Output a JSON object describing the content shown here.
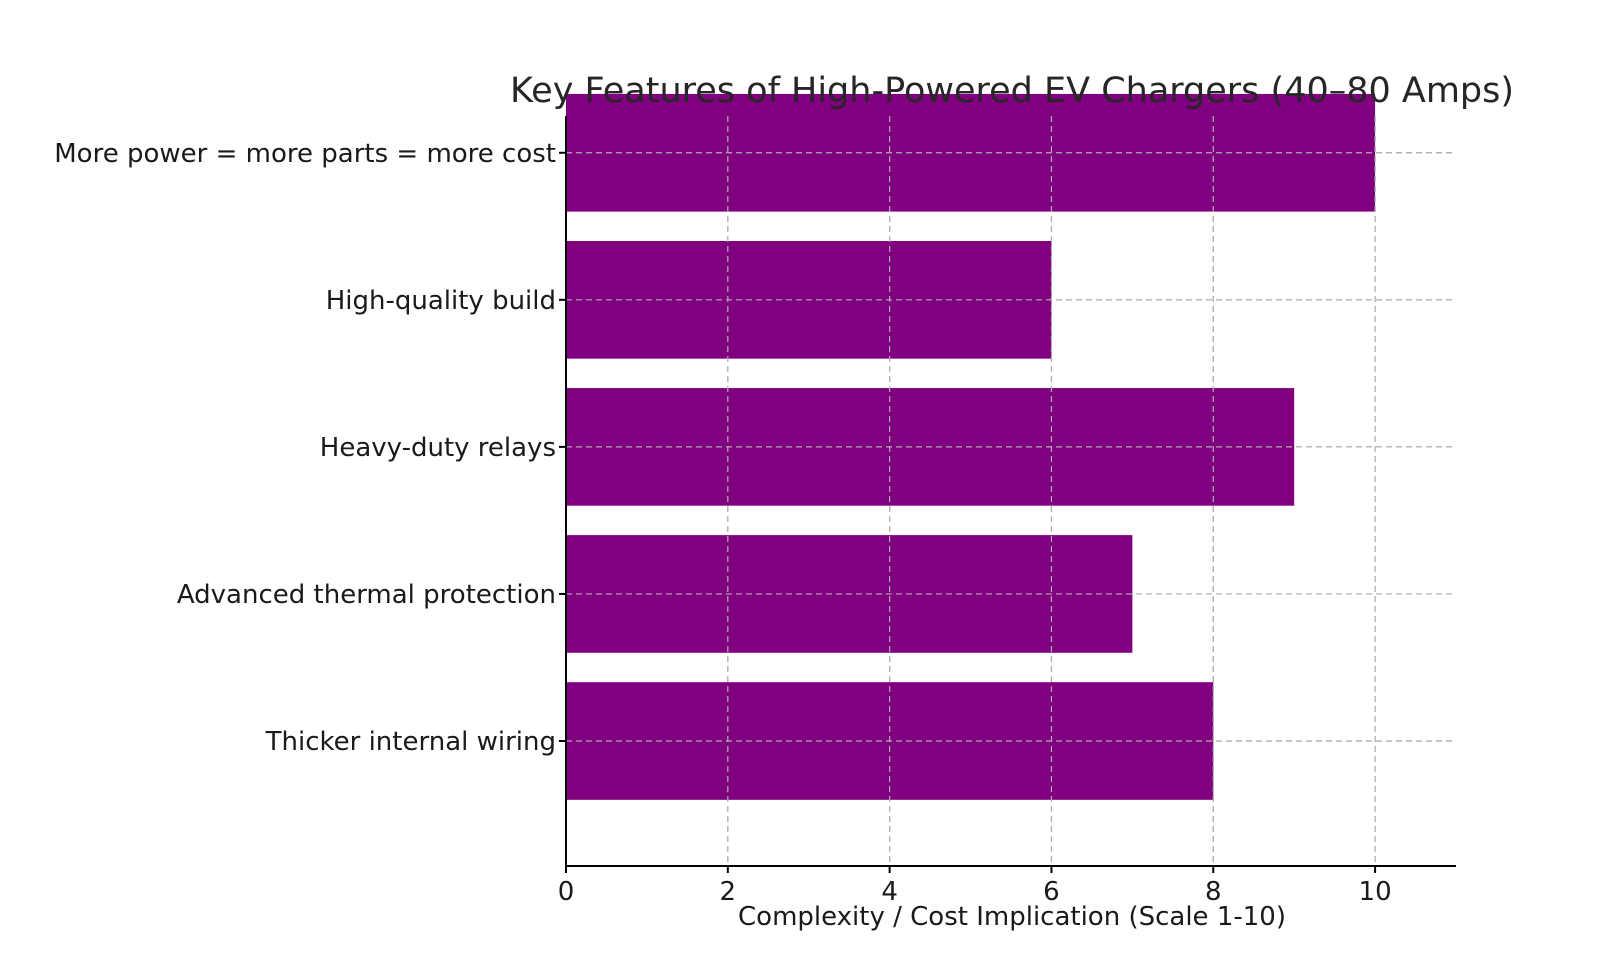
{
  "chart_data": {
    "type": "bar",
    "orientation": "horizontal",
    "title": "Key Features of High-Powered EV Chargers (40–80 Amps)",
    "xlabel": "Complexity / Cost Implication (Scale 1-10)",
    "ylabel": "",
    "categories": [
      "Thicker internal wiring",
      "Advanced thermal protection",
      "Heavy-duty relays",
      "High-quality build",
      "More power = more parts = more cost"
    ],
    "values": [
      8,
      7,
      9,
      6,
      10
    ],
    "xlim": [
      0,
      11
    ],
    "xticks": [
      0,
      2,
      4,
      6,
      8,
      10
    ],
    "bar_color": "#800080",
    "grid": true,
    "grid_style": "dashed"
  }
}
